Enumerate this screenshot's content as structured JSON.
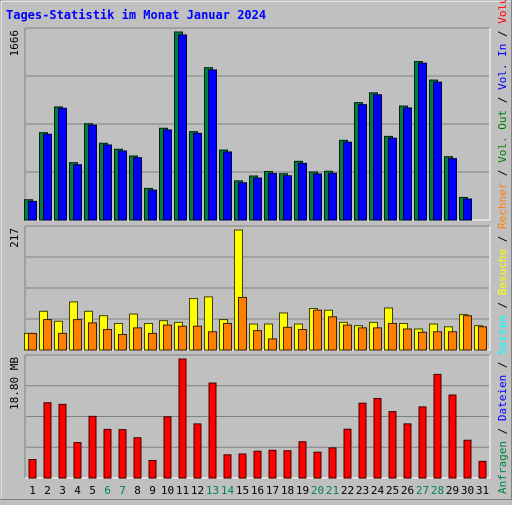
{
  "chart_data": {
    "type": "bar",
    "title": "Tages-Statistik im Monat Januar 2024",
    "days": [
      "1",
      "2",
      "3",
      "4",
      "5",
      "6",
      "7",
      "8",
      "9",
      "10",
      "11",
      "12",
      "13",
      "14",
      "15",
      "16",
      "17",
      "18",
      "19",
      "20",
      "21",
      "22",
      "23",
      "24",
      "25",
      "26",
      "27",
      "28",
      "29",
      "30",
      "31"
    ],
    "weekend_days": [
      "6",
      "7",
      "13",
      "14",
      "20",
      "21",
      "27",
      "28"
    ],
    "panels": [
      {
        "id": "requests",
        "max_label": "1666",
        "ylim": [
          0,
          1666
        ],
        "series": [
          {
            "name": "Anfragen",
            "color": "#008040",
            "values": [
              180,
              774,
              1002,
              508,
              853,
              680,
              627,
              567,
              280,
              813,
              1666,
              783,
              1350,
              620,
              347,
              390,
              430,
              410,
              520,
              426,
              432,
              706,
              1040,
              1127,
              741,
              1010,
              1404,
              1240,
              561,
              200,
              0
            ]
          },
          {
            "name": "Dateien",
            "color": "#0000ff",
            "values": [
              165,
              760,
              990,
              490,
              840,
              665,
              612,
              552,
              265,
              798,
              1640,
              768,
              1330,
              603,
              330,
              372,
              412,
              392,
              502,
              408,
              414,
              690,
              1022,
              1110,
              725,
              993,
              1390,
              1222,
              544,
              186,
              0
            ]
          },
          {
            "name": "Seiten",
            "color": "#00ffff",
            "values": [
              0,
              0,
              0,
              0,
              0,
              0,
              0,
              0,
              0,
              0,
              0,
              0,
              0,
              0,
              0,
              0,
              0,
              0,
              0,
              0,
              0,
              0,
              0,
              0,
              0,
              0,
              0,
              0,
              0,
              0,
              0
            ]
          }
        ]
      },
      {
        "id": "visits",
        "max_label": "217",
        "ylim": [
          0,
          217
        ],
        "series": [
          {
            "name": "Besuche",
            "color": "#ffff00",
            "values": [
              30,
              70,
              52,
              87,
              70,
              62,
              48,
              65,
              48,
              53,
              50,
              93,
              96,
              55,
              217,
              47,
              47,
              67,
              47,
              75,
              72,
              50,
              44,
              50,
              76,
              48,
              38,
              47,
              42,
              64,
              44
            ]
          },
          {
            "name": "Rechner",
            "color": "#ff8000",
            "values": [
              30,
              55,
              30,
              55,
              49,
              37,
              28,
              40,
              30,
              45,
              43,
              43,
              33,
              48,
              95,
              35,
              20,
              41,
              37,
              72,
              60,
              45,
              40,
              40,
              48,
              38,
              32,
              33,
              33,
              62,
              42
            ]
          }
        ]
      },
      {
        "id": "volume",
        "max_label": "18.80 MB",
        "ylim": [
          0,
          18.8
        ],
        "series": [
          {
            "name": "Volumen",
            "color": "#ff0000",
            "values": [
              2.92,
              11.89,
              11.63,
              5.6,
              9.74,
              7.68,
              7.64,
              6.36,
              2.77,
              9.67,
              18.8,
              8.55,
              15.0,
              3.67,
              3.79,
              4.23,
              4.38,
              4.31,
              5.73,
              4.08,
              4.75,
              7.71,
              11.82,
              12.56,
              10.49,
              8.55,
              11.24,
              16.37,
              13.11,
              5.97,
              2.63
            ]
          }
        ]
      }
    ],
    "right_legend": [
      {
        "parts": [
          {
            "text": "Anfragen",
            "color": "#008040"
          },
          {
            "text": " / ",
            "color": "#000000"
          },
          {
            "text": "Dateien",
            "color": "#0000ff"
          },
          {
            "text": " / ",
            "color": "#000000"
          },
          {
            "text": "Seiten",
            "color": "#00ffff"
          },
          {
            "text": " / ",
            "color": "#000000"
          },
          {
            "text": "Besuche",
            "color": "#ffff00"
          },
          {
            "text": " / ",
            "color": "#000000"
          },
          {
            "text": "Rechner",
            "color": "#ff8000"
          },
          {
            "text": " / ",
            "color": "#000000"
          },
          {
            "text": "Vol. Out",
            "color": "#008000"
          },
          {
            "text": " / ",
            "color": "#000000"
          },
          {
            "text": "Vol. In",
            "color": "#0000ff"
          },
          {
            "text": " / ",
            "color": "#000000"
          },
          {
            "text": "Volumen",
            "color": "#ff0000"
          }
        ]
      }
    ],
    "colors": {
      "background": "#c0c0c0",
      "title": "#0000ff",
      "weekday_label": "#000000",
      "weekend_label": "#00805c"
    }
  }
}
